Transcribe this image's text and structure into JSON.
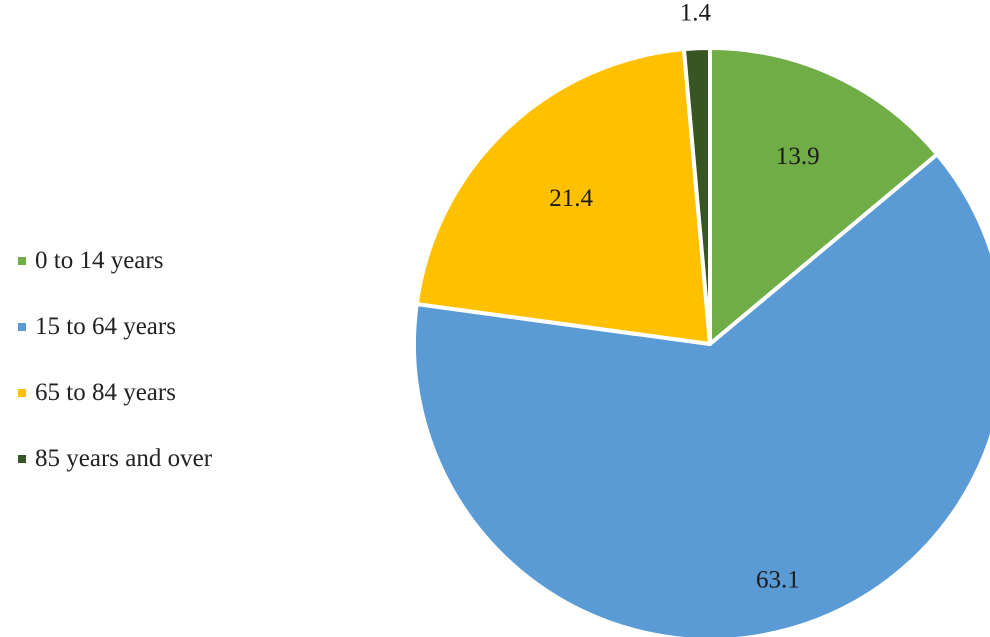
{
  "chart_data": {
    "type": "pie",
    "title": "",
    "slices": [
      {
        "label": "0 to 14 years",
        "value": 13.9,
        "color": "#70ad47"
      },
      {
        "label": "15 to 64 years",
        "value": 63.1,
        "color": "#5b9bd5"
      },
      {
        "label": "65 to 84 years",
        "value": 21.4,
        "color": "#ffc000"
      },
      {
        "label": "85 years and over",
        "value": 1.4,
        "color": "#375623"
      }
    ],
    "legend_position": "left",
    "data_labels": true
  }
}
